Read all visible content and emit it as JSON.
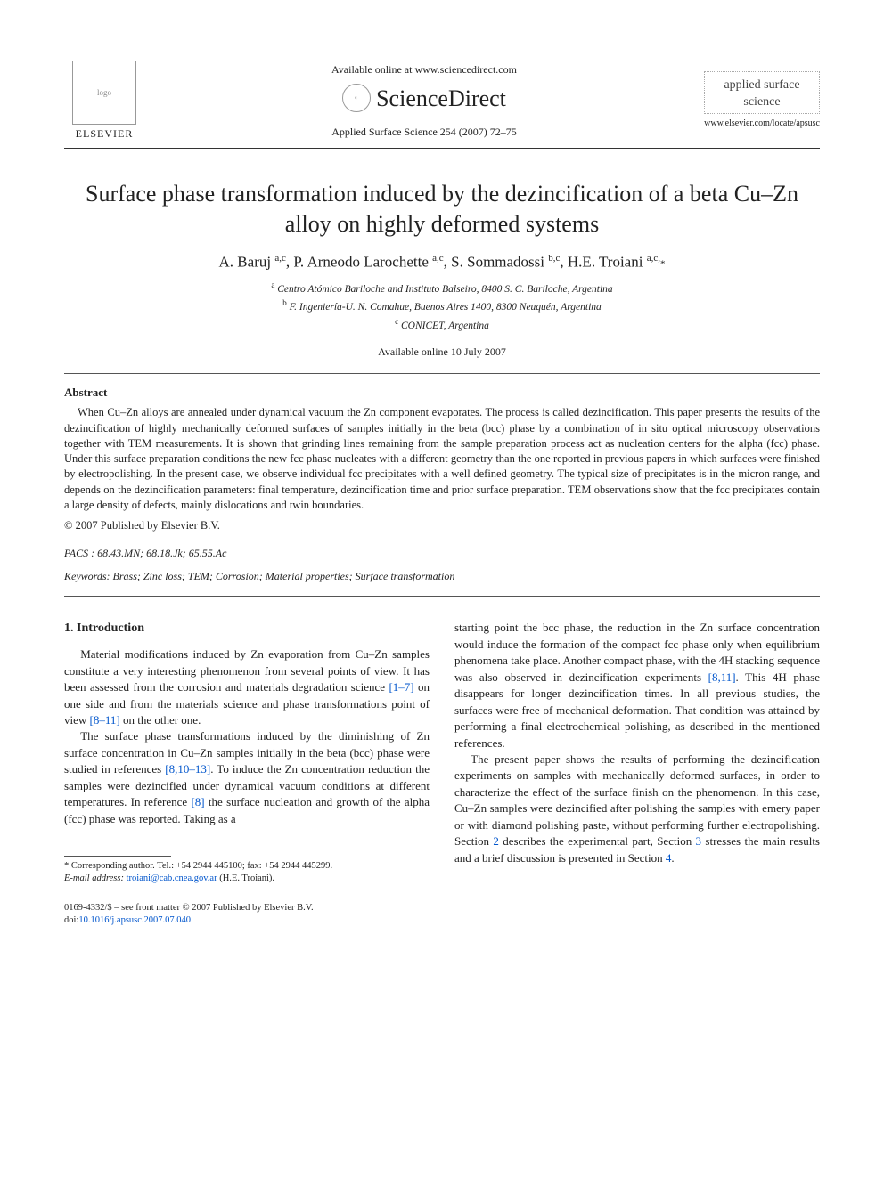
{
  "header": {
    "elsevier_label": "ELSEVIER",
    "available_online": "Available online at www.sciencedirect.com",
    "sciencedirect": "ScienceDirect",
    "journal_reference": "Applied Surface Science 254 (2007) 72–75",
    "journal_cover_title": "applied surface science",
    "locate_url": "www.elsevier.com/locate/apsusc"
  },
  "title": "Surface phase transformation induced by the dezincification of a beta Cu–Zn alloy on highly deformed systems",
  "authors_html": "A. Baruj <sup>a,c</sup>, P. Arneodo Larochette <sup>a,c</sup>, S. Sommadossi <sup>b,c</sup>, H.E. Troiani <sup>a,c,</sup><span class='star'>*</span>",
  "affiliations": [
    "<sup>a</sup> Centro Atómico Bariloche and Instituto Balseiro, 8400 S. C. Bariloche, Argentina",
    "<sup>b</sup> F. Ingeniería-U. N. Comahue, Buenos Aires 1400, 8300 Neuquén, Argentina",
    "<sup>c</sup> CONICET, Argentina"
  ],
  "available_date": "Available online 10 July 2007",
  "abstract": {
    "heading": "Abstract",
    "text": "When Cu–Zn alloys are annealed under dynamical vacuum the Zn component evaporates. The process is called dezincification. This paper presents the results of the dezincification of highly mechanically deformed surfaces of samples initially in the beta (bcc) phase by a combination of in situ optical microscopy observations together with TEM measurements. It is shown that grinding lines remaining from the sample preparation process act as nucleation centers for the alpha (fcc) phase. Under this surface preparation conditions the new fcc phase nucleates with a different geometry than the one reported in previous papers in which surfaces were finished by electropolishing. In the present case, we observe individual fcc precipitates with a well defined geometry. The typical size of precipitates is in the micron range, and depends on the dezincification parameters: final temperature, dezincification time and prior surface preparation. TEM observations show that the fcc precipitates contain a large density of defects, mainly dislocations and twin boundaries.",
    "copyright": "© 2007 Published by Elsevier B.V."
  },
  "pacs": "PACS : 68.43.MN; 68.18.Jk; 65.55.Ac",
  "keywords": "Keywords: Brass; Zinc loss; TEM; Corrosion; Material properties; Surface transformation",
  "body": {
    "section1_heading": "1. Introduction",
    "left_paragraphs": [
      "Material modifications induced by Zn evaporation from Cu–Zn samples constitute a very interesting phenomenon from several points of view. It has been assessed from the corrosion and materials degradation science <span class='ref-link'>[1–7]</span> on one side and from the materials science and phase transformations point of view <span class='ref-link'>[8–11]</span> on the other one.",
      "The surface phase transformations induced by the diminishing of Zn surface concentration in Cu–Zn samples initially in the beta (bcc) phase were studied in references <span class='ref-link'>[8,10–13]</span>. To induce the Zn concentration reduction the samples were dezincified under dynamical vacuum conditions at different temperatures. In reference <span class='ref-link'>[8]</span> the surface nucleation and growth of the alpha (fcc) phase was reported. Taking as a"
    ],
    "right_paragraphs": [
      "starting point the bcc phase, the reduction in the Zn surface concentration would induce the formation of the compact fcc phase only when equilibrium phenomena take place. Another compact phase, with the 4H stacking sequence was also observed in dezincification experiments <span class='ref-link'>[8,11]</span>. This 4H phase disappears for longer dezincification times. In all previous studies, the surfaces were free of mechanical deformation. That condition was attained by performing a final electrochemical polishing, as described in the mentioned references.",
      "The present paper shows the results of performing the dezincification experiments on samples with mechanically deformed surfaces, in order to characterize the effect of the surface finish on the phenomenon. In this case, Cu–Zn samples were dezincified after polishing the samples with emery paper or with diamond polishing paste, without performing further electropolishing. Section <span class='ref-link'>2</span> describes the experimental part, Section <span class='ref-link'>3</span> stresses the main results and a brief discussion is presented in Section <span class='ref-link'>4</span>."
    ]
  },
  "footnote": {
    "corresponding": "* Corresponding author. Tel.: +54 2944 445100; fax: +54 2944 445299.",
    "email_label": "E-mail address:",
    "email": "troiani@cab.cnea.gov.ar",
    "email_attribution": "(H.E. Troiani)."
  },
  "footer": {
    "line1": "0169-4332/$ – see front matter © 2007 Published by Elsevier B.V.",
    "doi_label": "doi:",
    "doi": "10.1016/j.apsusc.2007.07.040"
  },
  "colors": {
    "text": "#222222",
    "link": "#0055cc",
    "rule": "#333333",
    "background": "#ffffff"
  },
  "typography": {
    "base_family": "Times New Roman, serif",
    "title_pt": 26,
    "authors_pt": 17,
    "body_pt": 13,
    "abstract_pt": 12.5,
    "footnote_pt": 10.5
  }
}
